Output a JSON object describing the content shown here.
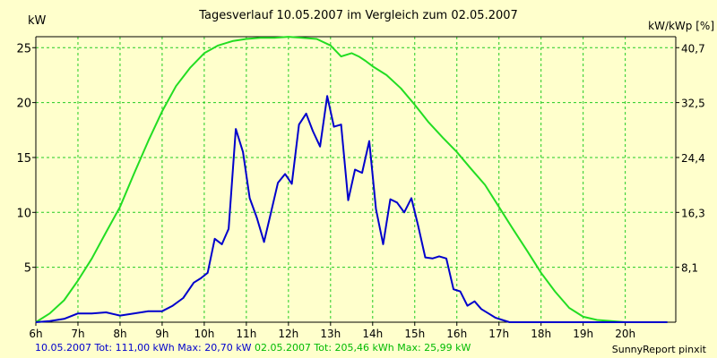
{
  "chart_data": {
    "type": "line",
    "title": "Tagesverlauf 10.05.2007 im Vergleich zum 02.05.2007",
    "ylabel_left": "kW",
    "ylabel_right": "kW/kWp [%]",
    "xlim": [
      6,
      21.2
    ],
    "ylim": [
      0,
      26
    ],
    "y_ticks": [
      5,
      10,
      15,
      20,
      25
    ],
    "y2_ticks": [
      "8,1",
      "16,3",
      "24,4",
      "32,5",
      "40,7"
    ],
    "x_ticks": [
      "6h",
      "7h",
      "8h",
      "9h",
      "10h",
      "11h",
      "12h",
      "13h",
      "14h",
      "15h",
      "16h",
      "17h",
      "18h",
      "19h",
      "20h"
    ],
    "grid": true,
    "series": [
      {
        "name": "10.05.2007",
        "color": "#0000cc",
        "x": [
          6.0,
          6.33,
          6.67,
          7.0,
          7.33,
          7.67,
          8.0,
          8.33,
          8.67,
          9.0,
          9.25,
          9.5,
          9.75,
          9.92,
          10.08,
          10.25,
          10.42,
          10.58,
          10.75,
          10.92,
          11.08,
          11.25,
          11.42,
          11.58,
          11.75,
          11.92,
          12.08,
          12.25,
          12.42,
          12.58,
          12.75,
          12.92,
          13.08,
          13.25,
          13.42,
          13.58,
          13.75,
          13.92,
          14.08,
          14.25,
          14.42,
          14.58,
          14.75,
          14.92,
          15.08,
          15.25,
          15.42,
          15.58,
          15.75,
          15.92,
          16.08,
          16.25,
          16.42,
          16.58,
          16.75,
          16.92,
          17.08,
          17.25,
          17.5,
          17.75,
          18.0,
          18.25,
          18.5,
          18.75,
          19.0,
          19.25,
          19.5,
          19.75,
          20.0,
          20.25,
          20.5,
          20.75,
          21.0
        ],
        "values": [
          0.0,
          0.1,
          0.3,
          0.8,
          0.8,
          0.9,
          0.6,
          0.8,
          1.0,
          1.0,
          1.5,
          2.2,
          3.6,
          4.0,
          4.5,
          7.6,
          7.1,
          8.5,
          17.6,
          15.5,
          11.3,
          9.5,
          7.3,
          9.9,
          12.7,
          13.5,
          12.6,
          18.0,
          19.0,
          17.4,
          16.0,
          20.6,
          17.8,
          18.0,
          11.1,
          13.9,
          13.6,
          16.5,
          10.3,
          7.1,
          11.2,
          10.9,
          10.0,
          11.3,
          8.8,
          5.9,
          5.8,
          6.0,
          5.8,
          3.0,
          2.8,
          1.5,
          1.9,
          1.2,
          0.8,
          0.4,
          0.2,
          0.0,
          0.0,
          0.0,
          0.0,
          0.0,
          0.0,
          0.0,
          0.0,
          0.0,
          0.0,
          0.0,
          0.0,
          0.0,
          0.0,
          0.0,
          0.0
        ]
      },
      {
        "name": "02.05.2007",
        "color": "#22dd22",
        "x": [
          6.0,
          6.33,
          6.67,
          7.0,
          7.33,
          7.67,
          8.0,
          8.33,
          8.67,
          9.0,
          9.33,
          9.67,
          10.0,
          10.33,
          10.67,
          11.0,
          11.33,
          11.67,
          12.0,
          12.33,
          12.67,
          13.0,
          13.25,
          13.5,
          13.67,
          13.83,
          14.0,
          14.33,
          14.67,
          15.0,
          15.33,
          15.67,
          16.0,
          16.33,
          16.67,
          17.0,
          17.33,
          17.67,
          18.0,
          18.33,
          18.67,
          19.0,
          19.33,
          19.67,
          20.0,
          20.33,
          20.67,
          21.0
        ],
        "values": [
          0.0,
          0.8,
          2.0,
          3.8,
          5.8,
          8.2,
          10.5,
          13.5,
          16.5,
          19.2,
          21.5,
          23.2,
          24.5,
          25.2,
          25.6,
          25.8,
          25.9,
          25.9,
          25.99,
          25.9,
          25.8,
          25.2,
          24.2,
          24.5,
          24.2,
          23.8,
          23.3,
          22.5,
          21.3,
          19.8,
          18.2,
          16.8,
          15.5,
          14.0,
          12.5,
          10.5,
          8.5,
          6.5,
          4.5,
          2.8,
          1.3,
          0.5,
          0.2,
          0.1,
          0.0,
          0.0,
          0.0,
          0.0
        ]
      }
    ]
  },
  "footer": {
    "series1_text": "10.05.2007 Tot: 111,00 kWh Max: 20,70 kW",
    "series2_text": "02.05.2007 Tot: 205,46 kWh Max: 25,99 kW",
    "credit": "SunnyReport pinxit"
  }
}
